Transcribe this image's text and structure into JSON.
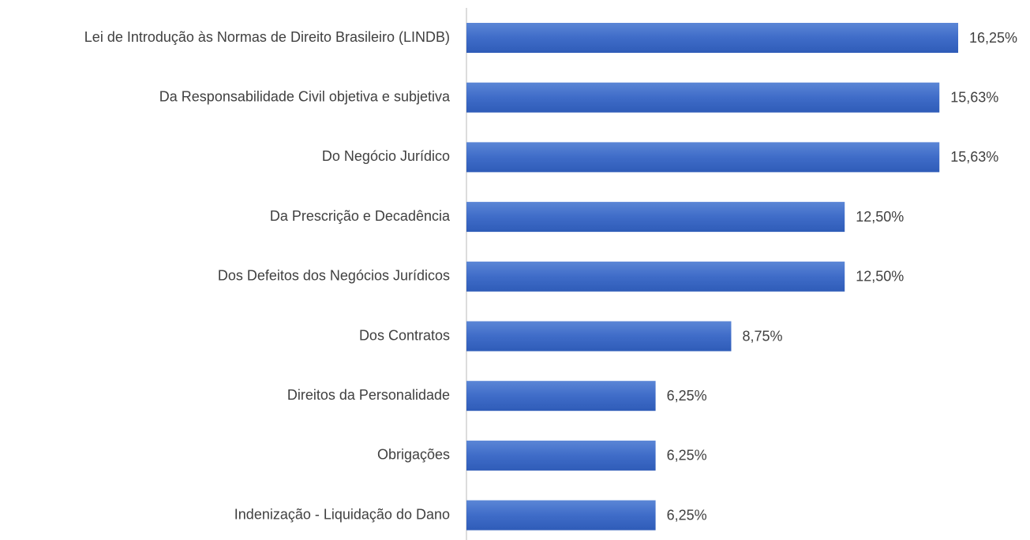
{
  "chart_data": {
    "type": "bar",
    "orientation": "horizontal",
    "categories": [
      "Lei de Introdução às Normas de Direito Brasileiro (LINDB)",
      "Da Responsabilidade Civil objetiva e subjetiva",
      "Do Negócio Jurídico",
      "Da Prescrição e Decadência",
      "Dos Defeitos dos Negócios Jurídicos",
      "Dos Contratos",
      "Direitos da Personalidade",
      "Obrigações",
      "Indenização - Liquidação do Dano"
    ],
    "values": [
      16.25,
      15.63,
      15.63,
      12.5,
      12.5,
      8.75,
      6.25,
      6.25,
      6.25
    ],
    "value_labels": [
      "16,25%",
      "15,63%",
      "15,63%",
      "12,50%",
      "12,50%",
      "8,75%",
      "6,25%",
      "6,25%",
      "6,25%"
    ],
    "color": "#4472c4"
  }
}
